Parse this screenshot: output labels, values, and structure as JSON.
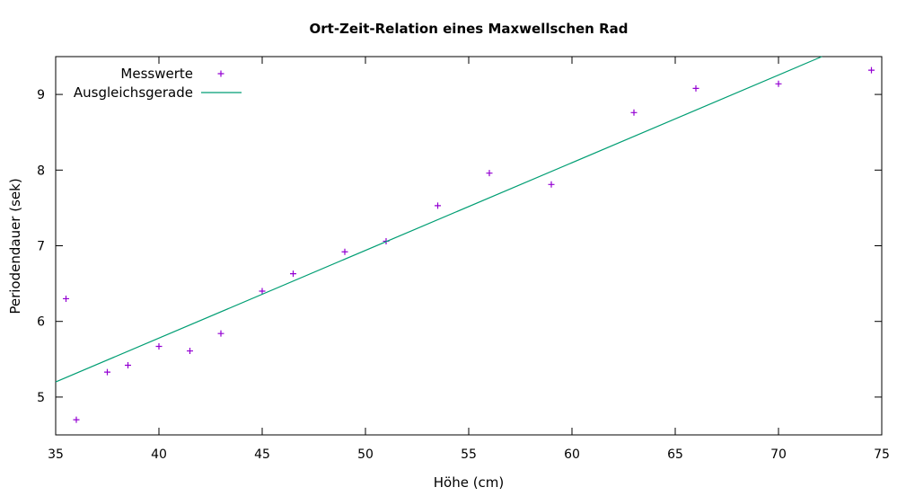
{
  "chart_data": {
    "type": "scatter",
    "title": "Ort-Zeit-Relation eines Maxwellschen Rad",
    "xlabel": "Höhe (cm)",
    "ylabel": "Periodendauer (sek)",
    "xlim": [
      35,
      75
    ],
    "ylim": [
      4.5,
      9.5
    ],
    "xticks": [
      35,
      40,
      45,
      50,
      55,
      60,
      65,
      70,
      75
    ],
    "yticks": [
      5,
      6,
      7,
      8,
      9
    ],
    "grid": false,
    "legend_position": "top-left",
    "series": [
      {
        "name": "Messwerte",
        "kind": "points",
        "marker": "+",
        "color": "#9400d3",
        "x": [
          35.5,
          36.0,
          37.5,
          38.5,
          40.0,
          41.5,
          43.0,
          45.0,
          46.5,
          49.0,
          51.0,
          53.5,
          56.0,
          59.0,
          63.0,
          66.0,
          70.0,
          74.5
        ],
        "y": [
          6.3,
          4.7,
          5.33,
          5.42,
          5.67,
          5.61,
          5.84,
          6.4,
          6.63,
          6.92,
          7.06,
          7.53,
          7.96,
          7.81,
          8.76,
          9.08,
          9.14,
          9.32
        ]
      },
      {
        "name": "Ausgleichsgerade",
        "kind": "line",
        "color": "#009e73",
        "x": [
          35.0,
          72.1
        ],
        "y": [
          5.2,
          9.5
        ]
      }
    ]
  }
}
